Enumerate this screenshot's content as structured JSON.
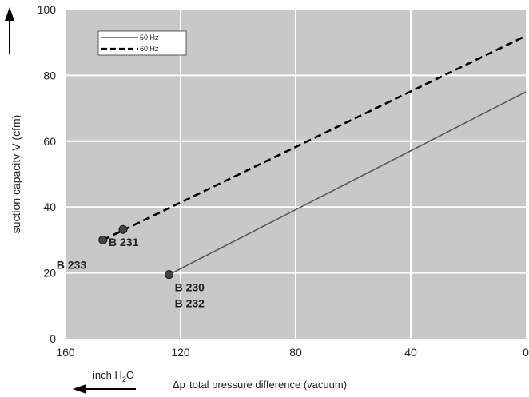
{
  "chart_data": {
    "type": "line",
    "title": "",
    "xlabel_symbol": "Δp",
    "xlabel": "total pressure difference (vacuum)",
    "xunit_base": "inch H",
    "xunit_sub": "2",
    "xunit_tail": "O",
    "ylabel": "suction capacity V (cfm)",
    "xlim": [
      160,
      0
    ],
    "ylim": [
      0,
      100
    ],
    "xticks": [
      160,
      120,
      80,
      40,
      0
    ],
    "yticks": [
      0,
      20,
      40,
      60,
      80,
      100
    ],
    "grid": true,
    "legend_position": "top-left",
    "colors": {
      "plot_bg": "#c8c8c8",
      "grid": "#ffffff",
      "series_50": "#5a5a5a",
      "series_60": "#000000"
    },
    "series": [
      {
        "name": "50 Hz",
        "style": "solid",
        "x": [
          124,
          0
        ],
        "y": [
          19.5,
          75
        ]
      },
      {
        "name": "60 Hz",
        "style": "dashed",
        "x": [
          147,
          0
        ],
        "y": [
          30,
          92
        ]
      }
    ],
    "markers": [
      {
        "x": 124,
        "y": 19.5
      },
      {
        "x": 140,
        "y": 33.2
      },
      {
        "x": 147,
        "y": 30
      }
    ],
    "annotations": [
      {
        "text": "B 231",
        "x": 140,
        "y": 33.2,
        "color": "#222222"
      },
      {
        "text": "B 233",
        "x": 147,
        "y": 30,
        "color": "#222222"
      },
      {
        "text": "B 230",
        "x": 124,
        "y": 19.5,
        "color": "#555555"
      },
      {
        "text": "B 232",
        "x": 124,
        "y": 19.5,
        "color": "#555555"
      }
    ]
  }
}
